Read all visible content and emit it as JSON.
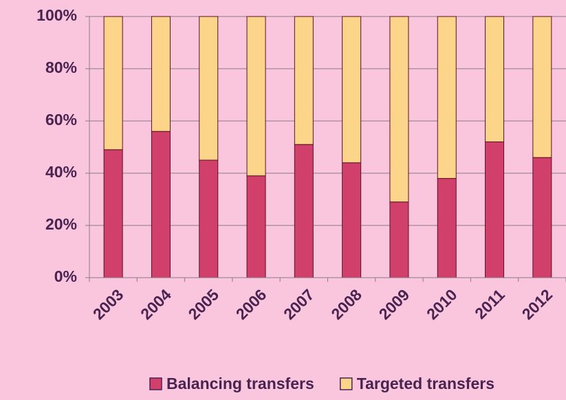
{
  "chart_data": {
    "type": "stacked_bar",
    "categories": [
      "2003",
      "2004",
      "2005",
      "2006",
      "2007",
      "2008",
      "2009",
      "2010",
      "2011",
      "2012"
    ],
    "series": [
      {
        "name": "Balancing transfers",
        "color": "#d13f6b",
        "values": [
          49,
          56,
          45,
          39,
          51,
          44,
          29,
          38,
          52,
          46
        ]
      },
      {
        "name": "Targeted transfers",
        "color": "#fdd58a",
        "values": [
          51,
          44,
          55,
          61,
          49,
          56,
          71,
          62,
          48,
          54
        ]
      }
    ],
    "ylim": [
      0,
      100
    ],
    "yticks": [
      {
        "value": 0,
        "label": "0%"
      },
      {
        "value": 20,
        "label": "20%"
      },
      {
        "value": 40,
        "label": "40%"
      },
      {
        "value": 60,
        "label": "60%"
      },
      {
        "value": 80,
        "label": "80%"
      },
      {
        "value": 100,
        "label": "100%"
      }
    ],
    "grid": true,
    "legend": "bottom"
  }
}
